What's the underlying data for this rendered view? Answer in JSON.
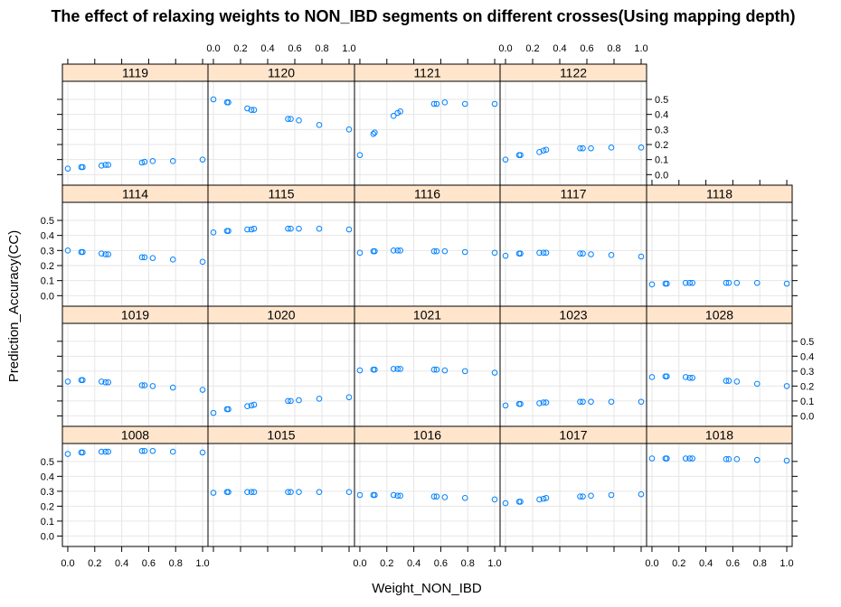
{
  "chart_data": {
    "type": "scatter",
    "title": "The effect of relaxing weights to NON_IBD segments on different crosses(Using mapping depth)",
    "xlabel": "Weight_NON_IBD",
    "ylabel": "Prediction_Accuracy(CC)",
    "xlim": [
      -0.04,
      1.04
    ],
    "ylim": [
      -0.07,
      0.62
    ],
    "x_ticks": [
      "0.0",
      "0.2",
      "0.4",
      "0.6",
      "0.8",
      "1.0"
    ],
    "y_ticks": [
      "0.0",
      "0.1",
      "0.2",
      "0.3",
      "0.4",
      "0.5"
    ],
    "x": [
      0.0,
      0.1,
      0.11,
      0.25,
      0.28,
      0.3,
      0.55,
      0.57,
      0.63,
      0.78,
      1.0
    ],
    "point_color": "#0080ff",
    "strip_color": "#ffe5cc",
    "grid": true,
    "layout": "lattice 5 columns x 4 rows",
    "panels": [
      {
        "name": "1119",
        "y": [
          0.04,
          0.05,
          0.05,
          0.06,
          0.065,
          0.065,
          0.08,
          0.085,
          0.09,
          0.09,
          0.1
        ]
      },
      {
        "name": "1120",
        "y": [
          0.5,
          0.48,
          0.48,
          0.44,
          0.43,
          0.43,
          0.37,
          0.37,
          0.36,
          0.33,
          0.3
        ]
      },
      {
        "name": "1121",
        "y": [
          0.13,
          0.27,
          0.28,
          0.39,
          0.41,
          0.42,
          0.47,
          0.47,
          0.48,
          0.47,
          0.47
        ]
      },
      {
        "name": "1122",
        "y": [
          0.1,
          0.13,
          0.13,
          0.15,
          0.16,
          0.165,
          0.175,
          0.175,
          0.175,
          0.18,
          0.18
        ]
      },
      {
        "name": "1114",
        "y": [
          0.3,
          0.29,
          0.29,
          0.28,
          0.275,
          0.275,
          0.255,
          0.255,
          0.25,
          0.24,
          0.225
        ]
      },
      {
        "name": "1115",
        "y": [
          0.42,
          0.43,
          0.43,
          0.44,
          0.44,
          0.445,
          0.445,
          0.445,
          0.445,
          0.445,
          0.44
        ]
      },
      {
        "name": "1116",
        "y": [
          0.285,
          0.295,
          0.295,
          0.3,
          0.3,
          0.3,
          0.295,
          0.295,
          0.295,
          0.29,
          0.285
        ]
      },
      {
        "name": "1117",
        "y": [
          0.265,
          0.28,
          0.28,
          0.285,
          0.285,
          0.285,
          0.28,
          0.28,
          0.275,
          0.27,
          0.26
        ]
      },
      {
        "name": "1118",
        "y": [
          0.075,
          0.08,
          0.08,
          0.085,
          0.085,
          0.085,
          0.085,
          0.085,
          0.085,
          0.085,
          0.08
        ]
      },
      {
        "name": "1019",
        "y": [
          0.23,
          0.24,
          0.24,
          0.23,
          0.225,
          0.225,
          0.205,
          0.205,
          0.2,
          0.19,
          0.175
        ]
      },
      {
        "name": "1020",
        "y": [
          0.02,
          0.045,
          0.045,
          0.065,
          0.07,
          0.075,
          0.1,
          0.1,
          0.105,
          0.115,
          0.125
        ]
      },
      {
        "name": "1021",
        "y": [
          0.305,
          0.31,
          0.31,
          0.315,
          0.315,
          0.315,
          0.31,
          0.31,
          0.305,
          0.3,
          0.29
        ]
      },
      {
        "name": "1023",
        "y": [
          0.07,
          0.08,
          0.08,
          0.085,
          0.09,
          0.09,
          0.095,
          0.095,
          0.095,
          0.095,
          0.095
        ]
      },
      {
        "name": "1028",
        "y": [
          0.26,
          0.265,
          0.265,
          0.26,
          0.255,
          0.255,
          0.235,
          0.235,
          0.23,
          0.215,
          0.2
        ]
      },
      {
        "name": "1008",
        "y": [
          0.55,
          0.56,
          0.56,
          0.565,
          0.565,
          0.565,
          0.57,
          0.57,
          0.57,
          0.565,
          0.56
        ]
      },
      {
        "name": "1015",
        "y": [
          0.29,
          0.295,
          0.295,
          0.295,
          0.295,
          0.295,
          0.295,
          0.295,
          0.295,
          0.295,
          0.295
        ]
      },
      {
        "name": "1016",
        "y": [
          0.275,
          0.275,
          0.275,
          0.275,
          0.27,
          0.27,
          0.265,
          0.265,
          0.26,
          0.255,
          0.245
        ]
      },
      {
        "name": "1017",
        "y": [
          0.22,
          0.23,
          0.23,
          0.245,
          0.25,
          0.255,
          0.265,
          0.265,
          0.27,
          0.275,
          0.28
        ]
      },
      {
        "name": "1018",
        "y": [
          0.52,
          0.52,
          0.52,
          0.52,
          0.52,
          0.52,
          0.515,
          0.515,
          0.515,
          0.51,
          0.505
        ]
      }
    ]
  }
}
